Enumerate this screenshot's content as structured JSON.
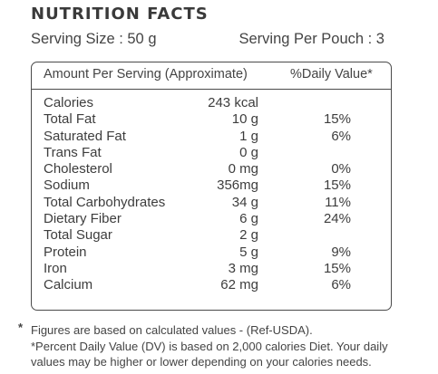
{
  "title": "NUTRITION FACTS",
  "serving_size": "Serving Size : 50 g",
  "serving_per_pouch": "Serving Per Pouch : 3",
  "table": {
    "header_amount": "Amount Per Serving (Approximate)",
    "header_dv": "%Daily Value*",
    "rows": [
      {
        "name": "Calories",
        "amount": "243 kcal",
        "dv": ""
      },
      {
        "name": "Total Fat",
        "amount": "10 g",
        "dv": "15%"
      },
      {
        "name": "Saturated Fat",
        "amount": "1 g",
        "dv": "6%"
      },
      {
        "name": "Trans Fat",
        "amount": "0 g",
        "dv": ""
      },
      {
        "name": "Cholesterol",
        "amount": "0 mg",
        "dv": "0%"
      },
      {
        "name": "Sodium",
        "amount": "356mg",
        "dv": "15%"
      },
      {
        "name": "Total Carbohydrates",
        "amount": "34 g",
        "dv": "11%"
      },
      {
        "name": "Dietary Fiber",
        "amount": "6 g",
        "dv": "24%"
      },
      {
        "name": "Total Sugar",
        "amount": "2 g",
        "dv": ""
      },
      {
        "name": "Protein",
        "amount": "5 g",
        "dv": "9%"
      },
      {
        "name": "Iron",
        "amount": "3 mg",
        "dv": "15%"
      },
      {
        "name": "Calcium",
        "amount": "62 mg",
        "dv": "6%"
      }
    ]
  },
  "footnotes": {
    "star": "*",
    "line1": "Figures are based on calculated values - (Ref-USDA).",
    "line2": "*Percent Daily Value (DV) is based on 2,000 calories Diet. Your daily values may be higher or lower depending on your calories needs."
  }
}
